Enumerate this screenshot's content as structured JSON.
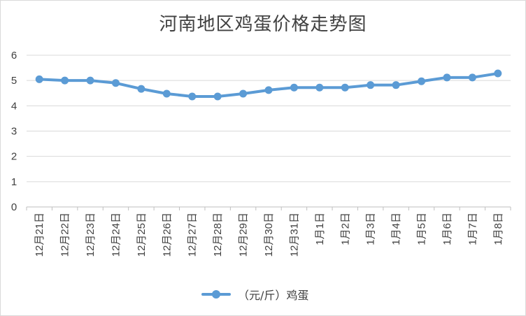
{
  "chart_data": {
    "type": "line",
    "title": "河南地区鸡蛋价格走势图",
    "categories": [
      "12月21日",
      "12月22日",
      "12月23日",
      "12月24日",
      "12月25日",
      "12月26日",
      "12月27日",
      "12月28日",
      "12月29日",
      "12月30日",
      "12月31日",
      "1月1日",
      "1月2日",
      "1月3日",
      "1月4日",
      "1月5日",
      "1月6日",
      "1月7日",
      "1月8日"
    ],
    "series": [
      {
        "name": "（元/斤）鸡蛋",
        "color": "#5b9bd5",
        "values": [
          5.05,
          5.0,
          5.0,
          4.9,
          4.67,
          4.48,
          4.37,
          4.37,
          4.48,
          4.62,
          4.72,
          4.72,
          4.72,
          4.82,
          4.82,
          4.97,
          5.12,
          5.12,
          5.28
        ]
      }
    ],
    "ylim": [
      0,
      6
    ],
    "yticks": [
      0,
      1,
      2,
      3,
      4,
      5,
      6
    ],
    "grid": true,
    "legend_position": "bottom"
  }
}
